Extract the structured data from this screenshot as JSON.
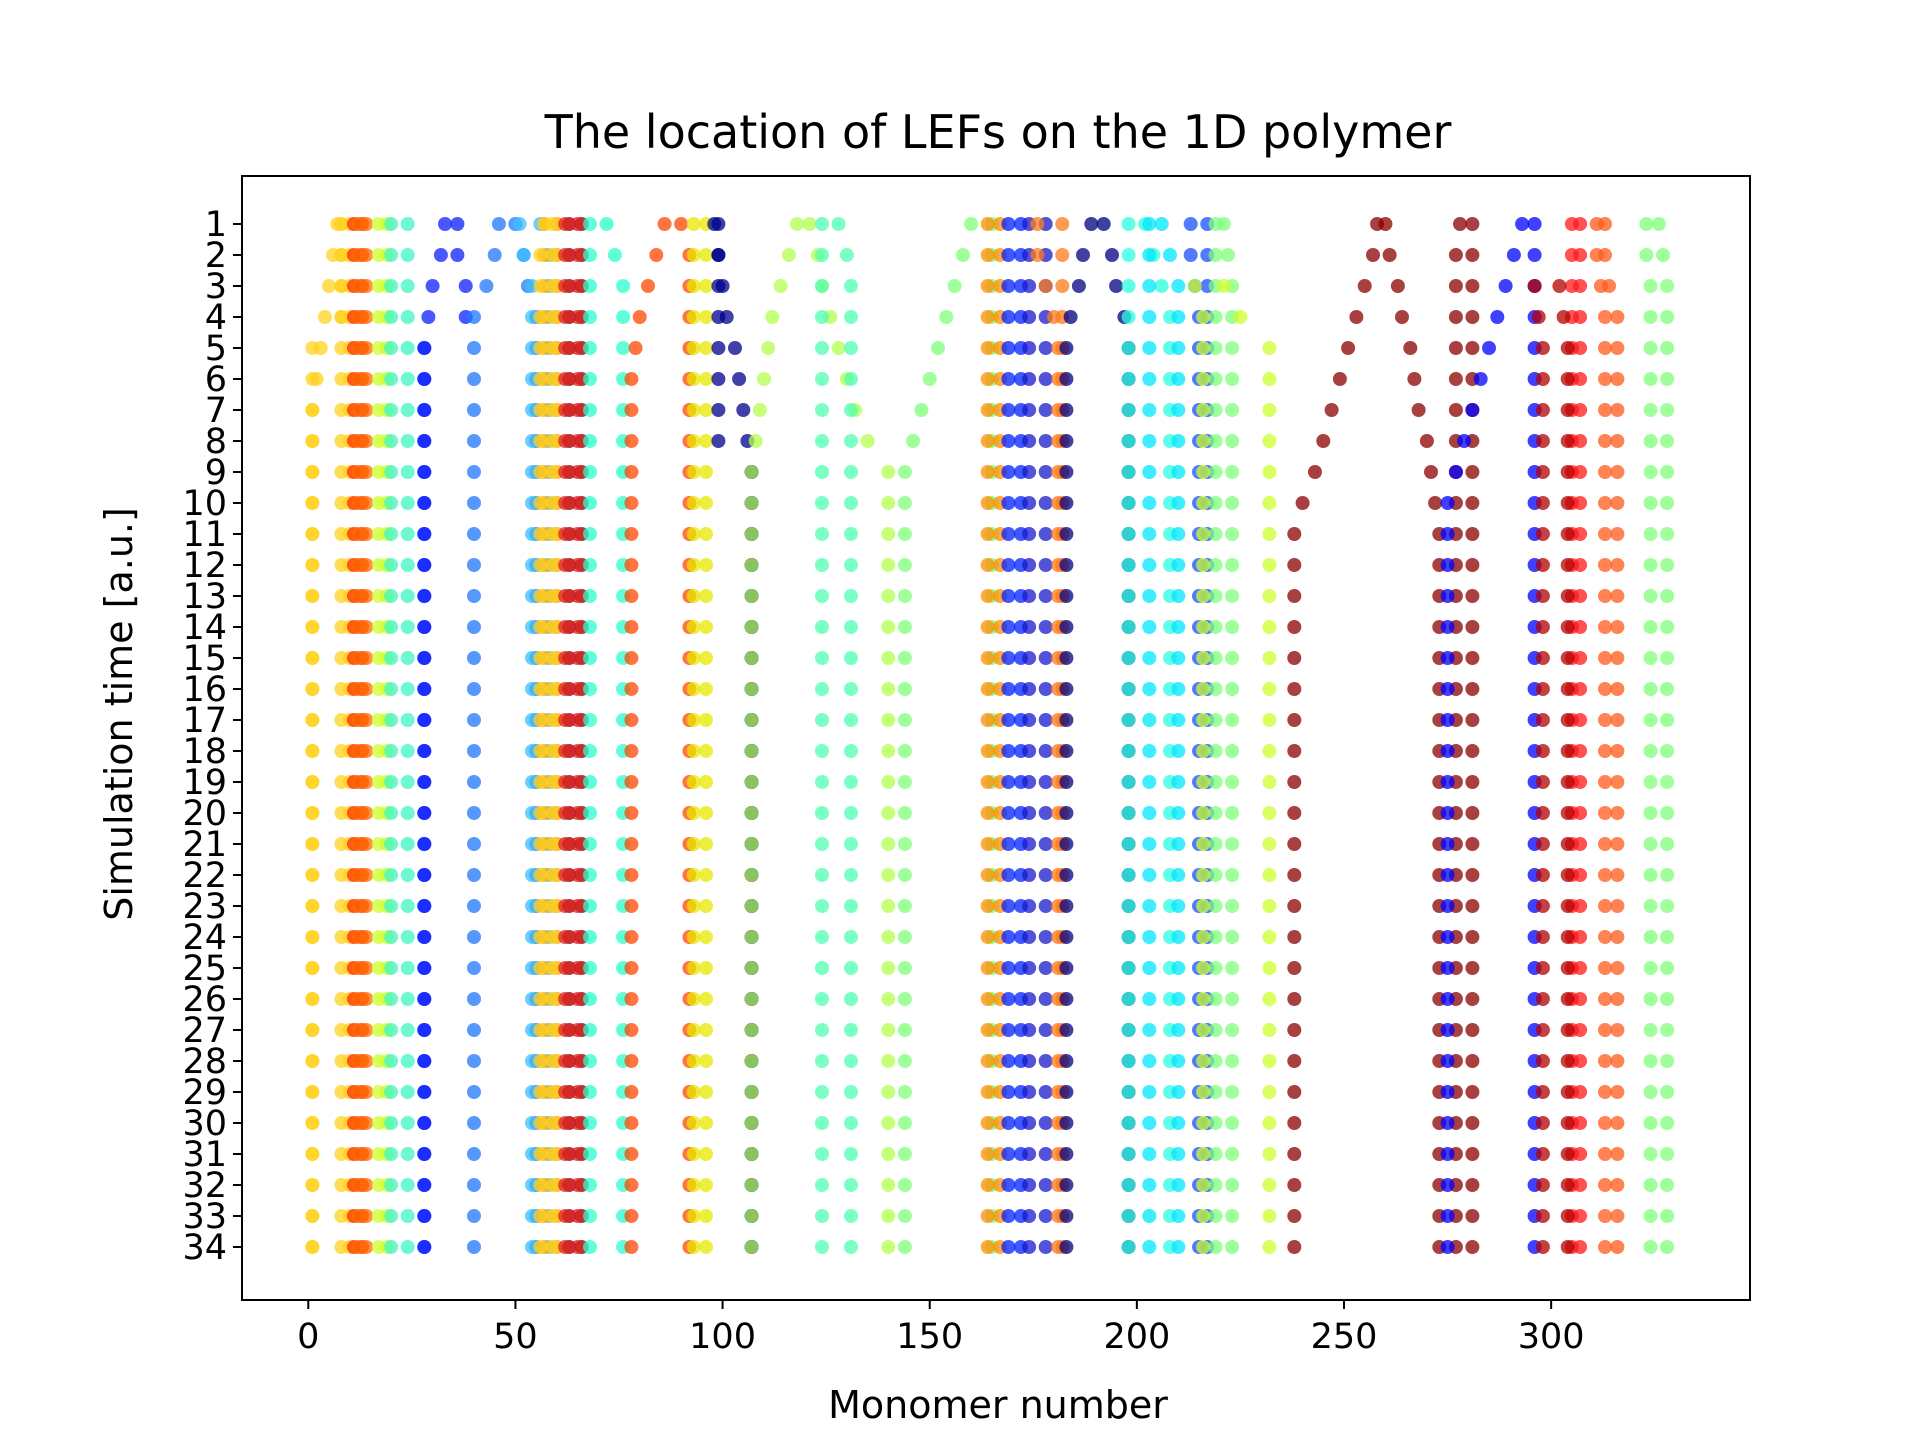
{
  "chart_data": {
    "type": "scatter",
    "title": "The location of LEFs on the 1D polymer",
    "xlabel": "Monomer number",
    "ylabel": "Simulation time [a.u.]",
    "xlim": [
      -16,
      348
    ],
    "ylim": [
      1,
      34
    ],
    "xticks": [
      "0",
      "50",
      "100",
      "150",
      "200",
      "250",
      "300"
    ],
    "yticks": [
      "1",
      "2",
      "3",
      "4",
      "5",
      "6",
      "7",
      "8",
      "9",
      "10",
      "11",
      "12",
      "13",
      "14",
      "15",
      "16",
      "17",
      "18",
      "19",
      "20",
      "21",
      "22",
      "23",
      "24",
      "25",
      "26",
      "27",
      "28",
      "29",
      "30",
      "31",
      "32",
      "33",
      "34"
    ],
    "grid": false,
    "y_inverted": true,
    "marker_alpha": 0.75,
    "lefs": [
      {
        "color": "#ffd21f",
        "t0": 1,
        "left": [
          7,
          6,
          5,
          4,
          3,
          2,
          1,
          1
        ],
        "right": [
          8,
          8,
          8,
          8,
          8,
          8,
          8,
          8
        ]
      },
      {
        "color": "#ffd21f",
        "t0": 1,
        "left": [
          8,
          8,
          8,
          8,
          1,
          1,
          1,
          1
        ],
        "right": [
          10,
          10,
          10,
          10,
          10,
          10,
          10,
          10
        ]
      },
      {
        "color": "#ff2a00",
        "t0": 1,
        "left": [
          11,
          11,
          11,
          11,
          11
        ],
        "right": [
          13,
          13,
          13,
          13,
          13
        ]
      },
      {
        "color": "#ff6a00",
        "t0": 1,
        "left": [
          12,
          12,
          12,
          12,
          12
        ],
        "right": [
          14,
          14,
          14,
          14,
          14
        ]
      },
      {
        "color": "#ccff2b",
        "t0": 1,
        "left": [
          17,
          17,
          17,
          17,
          17
        ],
        "right": [
          19,
          19,
          19,
          19,
          19
        ]
      },
      {
        "color": "#3df5c2",
        "t0": 1,
        "left": [
          20,
          20,
          20
        ],
        "right": [
          24,
          24,
          24
        ]
      },
      {
        "color": "#0d1fff",
        "t0": 1,
        "left": [
          33,
          32,
          30,
          29,
          28
        ],
        "right": [
          36,
          36,
          38,
          38,
          28
        ]
      },
      {
        "color": "#1f75ff",
        "t0": 1,
        "left": [
          46,
          45,
          43,
          40,
          40
        ],
        "right": [
          50,
          52,
          53,
          55,
          55
        ]
      },
      {
        "color": "#3dbfff",
        "t0": 1,
        "left": [
          51,
          52,
          54
        ],
        "right": [
          56,
          58,
          58
        ]
      },
      {
        "color": "#ffa500",
        "t0": 1,
        "left": [
          57,
          57,
          57,
          57
        ],
        "right": [
          60,
          60,
          60,
          60
        ]
      },
      {
        "color": "#ffd21f",
        "t0": 1,
        "left": [
          57,
          56,
          56,
          56
        ],
        "right": [
          59,
          59,
          59,
          59
        ]
      },
      {
        "color": "#8b0000",
        "t0": 1,
        "left": [
          63,
          63,
          63,
          63
        ],
        "right": [
          66,
          66,
          66,
          66
        ]
      },
      {
        "color": "#e02020",
        "t0": 1,
        "left": [
          62,
          62,
          62
        ],
        "right": [
          65,
          65,
          65
        ]
      },
      {
        "color": "#29ffcd",
        "t0": 1,
        "left": [
          68,
          68,
          68
        ],
        "right": [
          72,
          74,
          76
        ]
      },
      {
        "color": "#ff4500",
        "t0": 1,
        "left": [
          86,
          84,
          82,
          80,
          79,
          78
        ],
        "right": [
          90,
          92,
          92,
          92,
          92,
          92
        ]
      },
      {
        "color": "#e8e800",
        "t0": 1,
        "left": [
          93,
          93,
          93
        ],
        "right": [
          96,
          96,
          96
        ]
      },
      {
        "color": "#00008b",
        "t0": 1,
        "left": [
          98,
          99,
          100,
          101,
          103,
          104,
          105,
          106,
          107
        ],
        "right": [
          99,
          99,
          99,
          99,
          99,
          99,
          99,
          99,
          107
        ]
      },
      {
        "color": "#b3ff4d",
        "t0": 1,
        "left": [
          118,
          116,
          114,
          112,
          111,
          110,
          109,
          108,
          107
        ],
        "right": [
          121,
          123,
          124,
          126,
          128,
          130,
          132,
          135,
          140
        ]
      },
      {
        "color": "#4dffb2",
        "t0": 1,
        "left": [
          124,
          124,
          124
        ],
        "right": [
          128,
          130,
          131
        ]
      },
      {
        "color": "#7dff7a",
        "t0": 1,
        "left": [
          160,
          158,
          156,
          154,
          152,
          150,
          148,
          146,
          144
        ],
        "right": [
          165,
          165,
          165,
          165,
          165,
          165,
          165,
          165,
          165
        ]
      },
      {
        "color": "#ff8c00",
        "t0": 1,
        "left": [
          164,
          164,
          164,
          164
        ],
        "right": [
          167,
          167,
          167,
          167
        ]
      },
      {
        "color": "#0022ff",
        "t0": 1,
        "left": [
          169,
          169,
          169,
          169
        ],
        "right": [
          172,
          172,
          172,
          172
        ]
      },
      {
        "color": "#1a1acc",
        "t0": 1,
        "left": [
          174,
          174,
          174,
          174
        ],
        "right": [
          178,
          178,
          178,
          178
        ]
      },
      {
        "color": "#ff7a1a",
        "t0": 1,
        "left": [
          176,
          176,
          178,
          180,
          181
        ],
        "right": [
          182,
          182,
          182,
          182,
          182
        ]
      },
      {
        "color": "#000080",
        "t0": 1,
        "left": [
          189,
          187,
          186,
          184,
          183
        ],
        "right": [
          192,
          194,
          195,
          197,
          198
        ]
      },
      {
        "color": "#2bffe0",
        "t0": 1,
        "left": [
          198,
          198,
          198,
          198
        ],
        "right": [
          202,
          204,
          206,
          208
        ]
      },
      {
        "color": "#00e5ff",
        "t0": 1,
        "left": [
          203,
          203,
          203
        ],
        "right": [
          206,
          208,
          210
        ]
      },
      {
        "color": "#1a4fff",
        "t0": 1,
        "left": [
          213,
          213,
          214,
          215
        ],
        "right": [
          217,
          217,
          217,
          217
        ]
      },
      {
        "color": "#7dff7a",
        "t0": 1,
        "left": [
          219,
          219,
          219
        ],
        "right": [
          221,
          222,
          223
        ]
      },
      {
        "color": "#ccff2b",
        "t0": 3,
        "left": [
          214,
          216,
          216
        ],
        "right": [
          221,
          225,
          232
        ]
      },
      {
        "color": "#8b0000",
        "t0": 1,
        "left": [
          258,
          257,
          255,
          253,
          251,
          249,
          247,
          245,
          243,
          240,
          238
        ],
        "right": [
          260,
          261,
          263,
          264,
          266,
          267,
          268,
          270,
          271,
          272,
          273
        ]
      },
      {
        "color": "#8b0000",
        "t0": 1,
        "left": [
          278,
          277
        ],
        "right": [
          281,
          281
        ]
      },
      {
        "color": "#0000ff",
        "t0": 1,
        "left": [
          293,
          291,
          289,
          287,
          285,
          283,
          281,
          279,
          277,
          275
        ],
        "right": [
          296,
          296,
          296,
          296,
          296,
          296,
          296,
          296,
          296,
          296
        ]
      },
      {
        "color": "#ff1a1a",
        "t0": 1,
        "left": [
          305,
          305,
          305,
          305
        ],
        "right": [
          307,
          307,
          307,
          307
        ]
      },
      {
        "color": "#ff5a1a",
        "t0": 1,
        "left": [
          311,
          311,
          312,
          313
        ],
        "right": [
          313,
          313,
          314,
          316
        ]
      },
      {
        "color": "#7dff7a",
        "t0": 1,
        "left": [
          323,
          323,
          324
        ],
        "right": [
          326,
          327,
          328
        ]
      },
      {
        "color": "#b30000",
        "t0": 3,
        "left": [
          296,
          297,
          298
        ],
        "right": [
          302,
          303,
          304
        ]
      }
    ]
  }
}
